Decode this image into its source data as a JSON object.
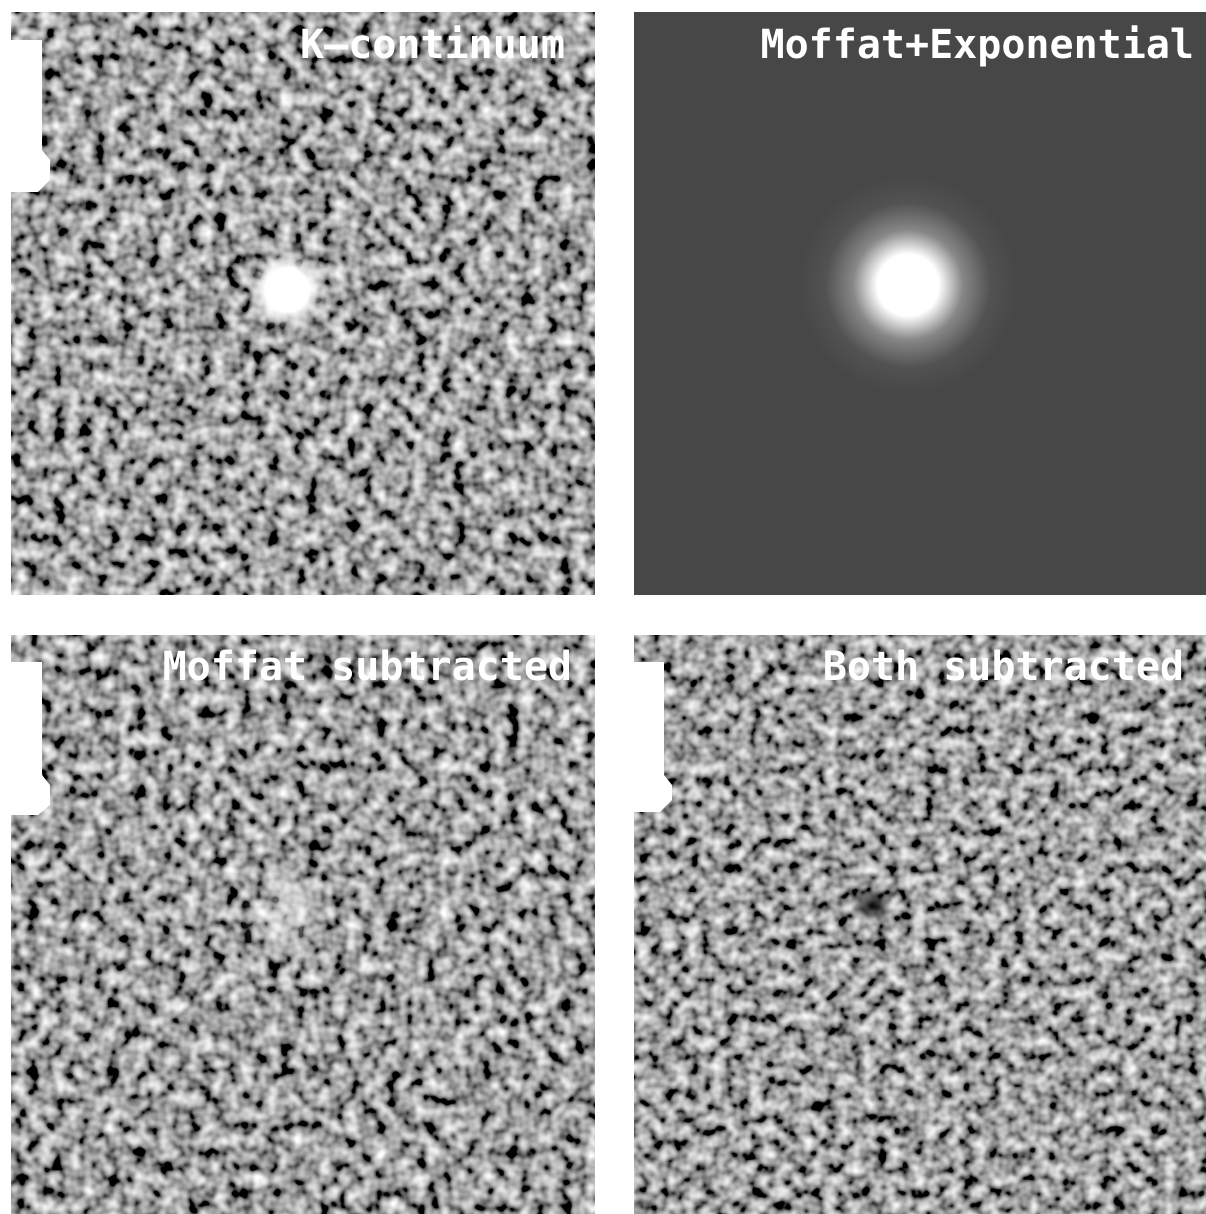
{
  "panels": [
    {
      "label": "K–continuum"
    },
    {
      "label": "Moffat+Exponential"
    },
    {
      "label": "Moffat subtracted"
    },
    {
      "label": "Both subtracted"
    }
  ]
}
